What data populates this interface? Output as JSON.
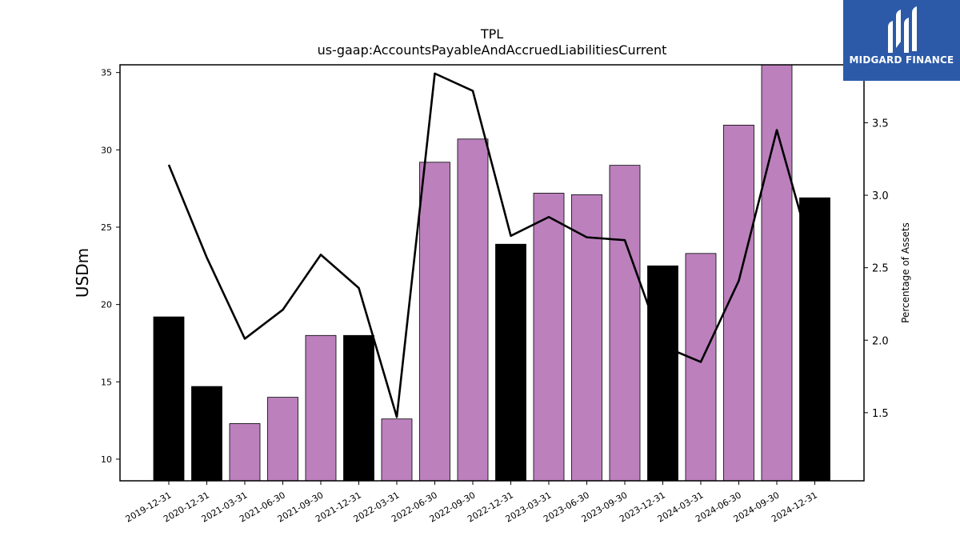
{
  "chart_data": {
    "type": "bar",
    "title": "TPL",
    "subtitle": "us-gaap:AccountsPayableAndAccruedLiabilitiesCurrent",
    "ylabel": "USDm",
    "ylabel_right": "Percentage of Assets",
    "ylim": [
      8.6,
      35.5
    ],
    "ylim_right": [
      1.03,
      3.9
    ],
    "yticks": [
      10,
      15,
      20,
      25,
      30,
      35
    ],
    "yticks_right": [
      1.5,
      2.0,
      2.5,
      3.0,
      3.5
    ],
    "categories": [
      "2019-12-31",
      "2020-12-31",
      "2021-03-31",
      "2021-06-30",
      "2021-09-30",
      "2021-12-31",
      "2022-03-31",
      "2022-06-30",
      "2022-09-30",
      "2022-12-31",
      "2023-03-31",
      "2023-06-30",
      "2023-09-30",
      "2023-12-31",
      "2024-03-31",
      "2024-06-30",
      "2024-09-30",
      "2024-12-31"
    ],
    "series": [
      {
        "type": "bar",
        "values": [
          19.2,
          14.7,
          12.3,
          14.0,
          18.0,
          18.0,
          12.6,
          29.2,
          30.7,
          23.9,
          27.2,
          27.1,
          29.0,
          22.5,
          23.3,
          31.6,
          35.6,
          26.9
        ],
        "colors": [
          "#000000",
          "#000000",
          "#bc80bd",
          "#bc80bd",
          "#bc80bd",
          "#000000",
          "#bc80bd",
          "#bc80bd",
          "#bc80bd",
          "#000000",
          "#bc80bd",
          "#bc80bd",
          "#bc80bd",
          "#000000",
          "#bc80bd",
          "#bc80bd",
          "#bc80bd",
          "#000000"
        ]
      },
      {
        "type": "line",
        "axis": "right",
        "color": "#000000",
        "values": [
          3.21,
          2.57,
          2.01,
          2.21,
          2.59,
          2.36,
          1.47,
          3.84,
          3.72,
          2.72,
          2.85,
          2.71,
          2.69,
          1.96,
          1.85,
          2.41,
          3.45,
          2.52
        ]
      }
    ],
    "grid": false
  },
  "logo": {
    "text": "MIDGARD FINANCE",
    "background": "#2c5aa9"
  }
}
